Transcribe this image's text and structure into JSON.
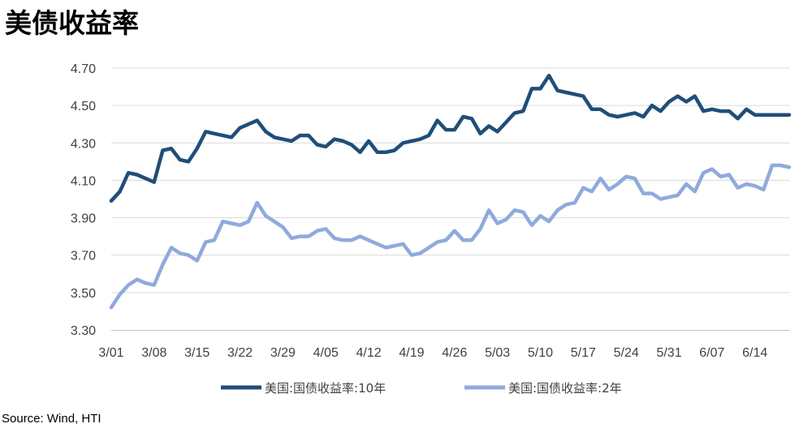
{
  "title": "美债收益率",
  "source": "Source: Wind, HTI",
  "chart_data": {
    "type": "line",
    "title": "美债收益率",
    "xlabel": "",
    "ylabel": "",
    "ylim": [
      3.3,
      4.7
    ],
    "yticks": [
      "3.30",
      "3.50",
      "3.70",
      "3.90",
      "4.10",
      "4.30",
      "4.50",
      "4.70"
    ],
    "xticks": [
      "3/01",
      "3/08",
      "3/15",
      "3/22",
      "3/29",
      "4/05",
      "4/12",
      "4/19",
      "4/26",
      "5/03",
      "5/10",
      "5/17",
      "5/24",
      "5/31",
      "6/07",
      "6/14"
    ],
    "grid": "horizontal",
    "legend_position": "bottom",
    "x": [
      "3/01",
      "3/02",
      "3/05",
      "3/06",
      "3/07",
      "3/08",
      "3/11",
      "3/12",
      "3/13",
      "3/14",
      "3/15",
      "3/18",
      "3/19",
      "3/20",
      "3/21",
      "3/22",
      "3/25",
      "3/26",
      "3/27",
      "3/28",
      "3/29",
      "4/01",
      "4/02",
      "4/03",
      "4/04",
      "4/05",
      "4/08",
      "4/09",
      "4/10",
      "4/11",
      "4/12",
      "4/15",
      "4/16",
      "4/17",
      "4/18",
      "4/19",
      "4/22",
      "4/23",
      "4/24",
      "4/25",
      "4/26",
      "4/29",
      "4/30",
      "5/01",
      "5/02",
      "5/03",
      "5/06",
      "5/07",
      "5/08",
      "5/09",
      "5/10",
      "5/13",
      "5/14",
      "5/15",
      "5/16",
      "5/17",
      "5/20",
      "5/21",
      "5/22",
      "5/23",
      "5/24",
      "5/27",
      "5/28",
      "5/29",
      "5/30",
      "5/31",
      "6/03",
      "6/04",
      "6/05",
      "6/06",
      "6/07",
      "6/10",
      "6/11",
      "6/12",
      "6/13",
      "6/14",
      "6/17",
      "6/18",
      "6/19",
      "6/20"
    ],
    "series": [
      {
        "name": "美国:国债收益率:10年",
        "color": "#1f4e79",
        "values": [
          3.99,
          4.04,
          4.14,
          4.13,
          4.11,
          4.09,
          4.26,
          4.27,
          4.21,
          4.2,
          4.27,
          4.36,
          4.35,
          4.34,
          4.33,
          4.38,
          4.4,
          4.42,
          4.36,
          4.33,
          4.32,
          4.31,
          4.34,
          4.34,
          4.29,
          4.28,
          4.32,
          4.31,
          4.29,
          4.25,
          4.31,
          4.25,
          4.25,
          4.26,
          4.3,
          4.31,
          4.32,
          4.34,
          4.42,
          4.37,
          4.37,
          4.44,
          4.43,
          4.35,
          4.39,
          4.36,
          4.41,
          4.46,
          4.47,
          4.59,
          4.59,
          4.66,
          4.58,
          4.57,
          4.56,
          4.55,
          4.48,
          4.48,
          4.45,
          4.44,
          4.45,
          4.46,
          4.44,
          4.5,
          4.47,
          4.52,
          4.55,
          4.52,
          4.55,
          4.47,
          4.48,
          4.47,
          4.47,
          4.43,
          4.48,
          4.45,
          4.45,
          4.45,
          4.45,
          4.45
        ]
      },
      {
        "name": "美国:国债收益率:2年",
        "color": "#8faadc",
        "values": [
          3.42,
          3.49,
          3.54,
          3.57,
          3.55,
          3.54,
          3.65,
          3.74,
          3.71,
          3.7,
          3.67,
          3.77,
          3.78,
          3.88,
          3.87,
          3.86,
          3.88,
          3.98,
          3.91,
          3.88,
          3.85,
          3.79,
          3.8,
          3.8,
          3.83,
          3.84,
          3.79,
          3.78,
          3.78,
          3.8,
          3.78,
          3.76,
          3.74,
          3.75,
          3.76,
          3.7,
          3.71,
          3.74,
          3.77,
          3.78,
          3.83,
          3.78,
          3.78,
          3.84,
          3.94,
          3.87,
          3.89,
          3.94,
          3.93,
          3.86,
          3.91,
          3.88,
          3.94,
          3.97,
          3.98,
          4.06,
          4.04,
          4.11,
          4.05,
          4.08,
          4.12,
          4.11,
          4.03,
          4.03,
          4.0,
          4.01,
          4.02,
          4.08,
          4.04,
          4.14,
          4.16,
          4.12,
          4.13,
          4.06,
          4.08,
          4.07,
          4.05,
          4.18,
          4.18,
          4.17
        ]
      }
    ]
  }
}
